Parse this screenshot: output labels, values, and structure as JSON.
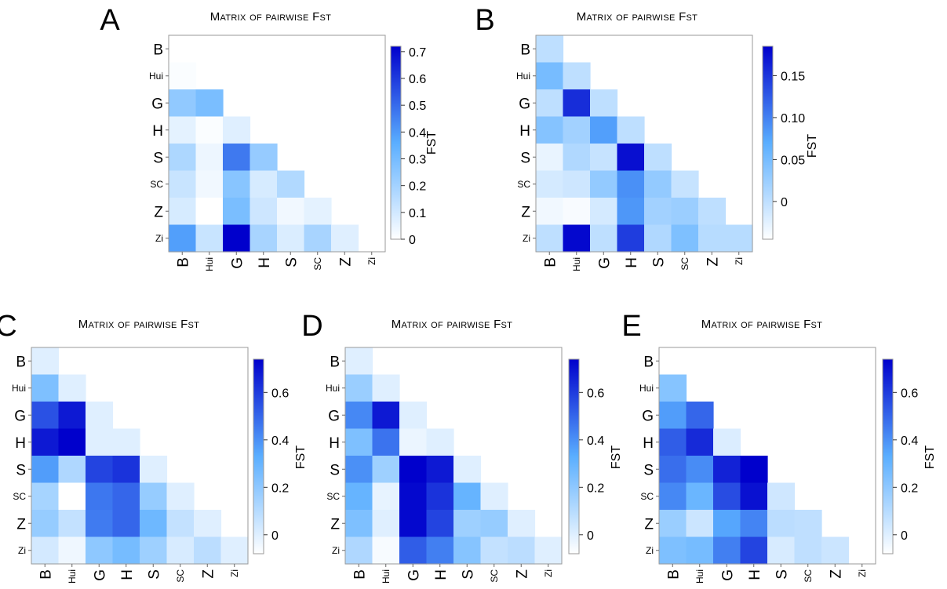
{
  "figure": {
    "panel_count": 5
  },
  "chart_data": [
    {
      "panel_label": "A",
      "type": "heatmap",
      "title": "Matrix of pairwise Fst",
      "rows": [
        "B",
        "Hui",
        "G",
        "H",
        "S",
        "SC",
        "Z",
        "Zi"
      ],
      "cols": [
        "B",
        "Hui",
        "G",
        "H",
        "S",
        "SC",
        "Z",
        "Zi"
      ],
      "triangle": "lower-strict",
      "values": [
        [
          null,
          null,
          null,
          null,
          null,
          null,
          null,
          null
        ],
        [
          0.01,
          null,
          null,
          null,
          null,
          null,
          null,
          null
        ],
        [
          0.24,
          0.29,
          null,
          null,
          null,
          null,
          null,
          null
        ],
        [
          0.06,
          0.01,
          0.07,
          null,
          null,
          null,
          null,
          null
        ],
        [
          0.18,
          0.04,
          0.47,
          0.23,
          null,
          null,
          null,
          null
        ],
        [
          0.12,
          0.03,
          0.26,
          0.09,
          0.17,
          null,
          null,
          null
        ],
        [
          0.09,
          0.0,
          0.29,
          0.11,
          0.03,
          0.06,
          null,
          null
        ],
        [
          0.39,
          0.12,
          0.72,
          0.19,
          0.08,
          0.19,
          0.07,
          null
        ]
      ],
      "colorbar": {
        "label": "FST",
        "min": 0,
        "max": 0.72,
        "ticks": [
          0,
          0.1,
          0.2,
          0.3,
          0.4,
          0.5,
          0.6,
          0.7
        ],
        "tick_labels": [
          "0",
          "0.1",
          "0.2",
          "0.3",
          "0.4",
          "0.5",
          "0.6",
          "0.7"
        ]
      },
      "colors": {
        "low": "#ffffff",
        "mid": "#5aaeff",
        "high": "#0000cc"
      }
    },
    {
      "panel_label": "B",
      "type": "heatmap",
      "title": "Matrix of pairwise Fst",
      "rows": [
        "B",
        "Hui",
        "G",
        "H",
        "S",
        "SC",
        "Z",
        "Zi"
      ],
      "cols": [
        "B",
        "Hui",
        "G",
        "H",
        "S",
        "SC",
        "Z",
        "Zi"
      ],
      "triangle": "lower-with-diagonal",
      "values": [
        [
          0.0,
          null,
          null,
          null,
          null,
          null,
          null,
          null
        ],
        [
          0.05,
          0.0,
          null,
          null,
          null,
          null,
          null,
          null
        ],
        [
          0.0,
          0.155,
          0.0,
          null,
          null,
          null,
          null,
          null
        ],
        [
          0.04,
          0.02,
          0.08,
          0.0,
          null,
          null,
          null,
          null
        ],
        [
          -0.03,
          0.01,
          -0.005,
          0.175,
          0.0,
          null,
          null,
          null
        ],
        [
          -0.015,
          -0.01,
          0.03,
          0.09,
          0.03,
          -0.005,
          null,
          null
        ],
        [
          -0.035,
          -0.04,
          -0.015,
          0.085,
          0.02,
          0.025,
          0.0,
          null
        ],
        [
          0.0,
          0.18,
          0.0,
          0.145,
          0.01,
          0.045,
          0.005,
          0.005
        ]
      ],
      "colorbar": {
        "label": "FST",
        "min": -0.045,
        "max": 0.185,
        "ticks": [
          0,
          0.05,
          0.1,
          0.15
        ],
        "tick_labels": [
          "0",
          "0.05",
          "0.10",
          "0.15"
        ]
      },
      "colors": {
        "low": "#ffffff",
        "mid": "#5aaeff",
        "high": "#0000cc"
      }
    },
    {
      "panel_label": "C",
      "type": "heatmap",
      "title": "Matrix of pairwise Fst",
      "rows": [
        "B",
        "Hui",
        "G",
        "H",
        "S",
        "SC",
        "Z",
        "Zi"
      ],
      "cols": [
        "B",
        "Hui",
        "G",
        "H",
        "S",
        "SC",
        "Z",
        "Zi"
      ],
      "triangle": "lower-with-diagonal",
      "values": [
        [
          0.0,
          null,
          null,
          null,
          null,
          null,
          null,
          null
        ],
        [
          0.24,
          0.0,
          null,
          null,
          null,
          null,
          null,
          null
        ],
        [
          0.55,
          0.68,
          0.0,
          null,
          null,
          null,
          null,
          null
        ],
        [
          0.68,
          0.74,
          0.0,
          0.0,
          null,
          null,
          null,
          null
        ],
        [
          0.37,
          0.12,
          0.58,
          0.62,
          0.0,
          null,
          null,
          null
        ],
        [
          0.14,
          -0.08,
          0.46,
          0.5,
          0.18,
          0.0,
          null,
          null
        ],
        [
          0.18,
          0.07,
          0.45,
          0.5,
          0.28,
          0.07,
          0.0,
          null
        ],
        [
          0.03,
          -0.04,
          0.2,
          0.26,
          0.16,
          0.02,
          0.09,
          0.0
        ]
      ],
      "colorbar": {
        "label": "FST",
        "min": -0.08,
        "max": 0.74,
        "ticks": [
          0,
          0.2,
          0.4,
          0.6
        ],
        "tick_labels": [
          "0",
          "0.2",
          "0.4",
          "0.6"
        ]
      },
      "colors": {
        "low": "#ffffff",
        "mid": "#5aaeff",
        "high": "#0000cc"
      }
    },
    {
      "panel_label": "D",
      "type": "heatmap",
      "title": "Matrix of pairwise Fst",
      "rows": [
        "B",
        "Hui",
        "G",
        "H",
        "S",
        "SC",
        "Z",
        "Zi"
      ],
      "cols": [
        "B",
        "Hui",
        "G",
        "H",
        "S",
        "SC",
        "Z",
        "Zi"
      ],
      "triangle": "lower-with-diagonal",
      "values": [
        [
          0.0,
          null,
          null,
          null,
          null,
          null,
          null,
          null
        ],
        [
          0.17,
          0.0,
          null,
          null,
          null,
          null,
          null,
          null
        ],
        [
          0.42,
          0.68,
          0.0,
          null,
          null,
          null,
          null,
          null
        ],
        [
          0.24,
          0.47,
          -0.03,
          0.0,
          null,
          null,
          null,
          null
        ],
        [
          0.4,
          0.16,
          0.74,
          0.68,
          0.0,
          null,
          null,
          null
        ],
        [
          0.3,
          -0.02,
          0.72,
          0.62,
          0.3,
          0.0,
          null,
          null
        ],
        [
          0.24,
          0.0,
          0.72,
          0.58,
          0.16,
          0.18,
          0.0,
          null
        ],
        [
          0.12,
          -0.06,
          0.52,
          0.44,
          0.22,
          0.07,
          0.09,
          0.0
        ]
      ],
      "colorbar": {
        "label": "FST",
        "min": -0.08,
        "max": 0.74,
        "ticks": [
          0,
          0.2,
          0.4,
          0.6
        ],
        "tick_labels": [
          "0",
          "0.2",
          "0.4",
          "0.6"
        ]
      },
      "colors": {
        "low": "#ffffff",
        "mid": "#5aaeff",
        "high": "#0000cc"
      }
    },
    {
      "panel_label": "E",
      "type": "heatmap",
      "title": "Matrix of pairwise Fst",
      "rows": [
        "B",
        "Hui",
        "G",
        "H",
        "S",
        "SC",
        "Z",
        "Zi"
      ],
      "cols": [
        "B",
        "Hui",
        "G",
        "H",
        "S",
        "SC",
        "Z",
        "Zi"
      ],
      "triangle": "lower-strict",
      "values": [
        [
          null,
          null,
          null,
          null,
          null,
          null,
          null,
          null
        ],
        [
          0.22,
          null,
          null,
          null,
          null,
          null,
          null,
          null
        ],
        [
          0.37,
          0.5,
          null,
          null,
          null,
          null,
          null,
          null
        ],
        [
          0.52,
          0.64,
          0.01,
          null,
          null,
          null,
          null,
          null
        ],
        [
          0.48,
          0.41,
          0.66,
          0.74,
          null,
          null,
          null,
          null
        ],
        [
          0.42,
          0.29,
          0.56,
          0.7,
          0.04,
          null,
          null,
          null
        ],
        [
          0.17,
          0.05,
          0.35,
          0.43,
          0.09,
          0.08,
          null,
          null
        ],
        [
          0.24,
          0.26,
          0.44,
          0.58,
          0.02,
          0.08,
          0.05,
          null
        ]
      ],
      "colorbar": {
        "label": "FST",
        "min": -0.08,
        "max": 0.74,
        "ticks": [
          0,
          0.2,
          0.4,
          0.6
        ],
        "tick_labels": [
          "0",
          "0.2",
          "0.4",
          "0.6"
        ]
      },
      "colors": {
        "low": "#ffffff",
        "mid": "#5aaeff",
        "high": "#0000cc"
      }
    }
  ]
}
